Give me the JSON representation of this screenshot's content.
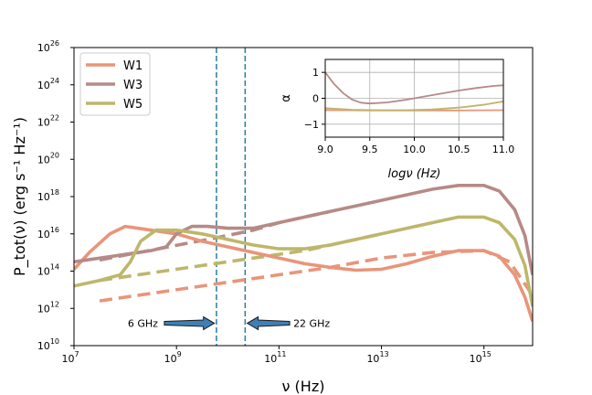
{
  "chart_data": [
    {
      "type": "line",
      "xlabel": "ν (Hz)",
      "ylabel": "P_tot(ν) (erg s⁻¹ Hz⁻¹)",
      "x_scale": "log",
      "y_scale": "log",
      "xlim_log10": [
        7,
        15.95
      ],
      "ylim_log10": [
        10,
        26
      ],
      "xticks_log10": [
        7,
        9,
        11,
        13,
        15
      ],
      "yticks_log10": [
        10,
        12,
        14,
        16,
        18,
        20,
        22,
        24,
        26
      ],
      "tick_base": "10",
      "legend": {
        "placement": "top-left",
        "entries": [
          "W1",
          "W3",
          "W5"
        ]
      },
      "series": [
        {
          "name": "W1",
          "color": "#e8957a",
          "style": "solid",
          "log_x": [
            7,
            7.3,
            7.7,
            8.0,
            8.5,
            9.0,
            9.5,
            10.0,
            10.5,
            11.0,
            11.5,
            12.0,
            12.5,
            13.0,
            13.5,
            14.0,
            14.5,
            15.0,
            15.3,
            15.6,
            15.8,
            15.95
          ],
          "log_y": [
            14.1,
            15.0,
            16.0,
            16.4,
            16.2,
            16.0,
            15.6,
            15.3,
            15.0,
            14.7,
            14.4,
            14.2,
            14.05,
            14.1,
            14.4,
            14.8,
            15.1,
            15.1,
            14.8,
            13.8,
            12.6,
            11.3
          ]
        },
        {
          "name": "W3",
          "color": "#b68a87",
          "style": "solid",
          "log_x": [
            7,
            8.0,
            8.5,
            8.8,
            9.0,
            9.3,
            9.6,
            10.0,
            10.5,
            11.0,
            11.5,
            12.0,
            12.5,
            13.0,
            13.5,
            14.0,
            14.5,
            15.0,
            15.3,
            15.6,
            15.8,
            15.95
          ],
          "log_y": [
            14.5,
            14.9,
            15.1,
            15.3,
            16.0,
            16.4,
            16.4,
            16.3,
            16.3,
            16.6,
            16.9,
            17.2,
            17.5,
            17.8,
            18.1,
            18.4,
            18.6,
            18.6,
            18.3,
            17.3,
            15.9,
            13.8
          ]
        },
        {
          "name": "W5",
          "color": "#bdb76b",
          "style": "solid",
          "log_x": [
            7,
            7.5,
            7.9,
            8.1,
            8.3,
            8.6,
            9.0,
            9.5,
            10.0,
            10.5,
            11.0,
            11.5,
            12.0,
            12.5,
            13.0,
            13.5,
            14.0,
            14.5,
            15.0,
            15.3,
            15.6,
            15.8,
            15.95
          ],
          "log_y": [
            13.2,
            13.5,
            13.8,
            14.5,
            15.6,
            16.2,
            16.2,
            16.0,
            15.7,
            15.4,
            15.2,
            15.2,
            15.4,
            15.7,
            16.0,
            16.3,
            16.6,
            16.9,
            16.9,
            16.6,
            15.7,
            14.3,
            12.1
          ]
        },
        {
          "name": "",
          "color": "#e8957a",
          "style": "dashed",
          "log_x": [
            7.5,
            12.0,
            13.0,
            14.0,
            15.0,
            15.5,
            15.9
          ],
          "log_y": [
            12.4,
            14.2,
            14.7,
            15.0,
            15.1,
            14.5,
            12.9
          ]
        },
        {
          "name": "",
          "color": "#b68a87",
          "style": "dashed",
          "log_x": [
            7.5,
            9.8,
            10.5,
            11.0,
            12.0
          ],
          "log_y": [
            14.6,
            15.8,
            16.2,
            16.6,
            17.2
          ]
        },
        {
          "name": "",
          "color": "#bdb76b",
          "style": "dashed",
          "log_x": [
            7.5,
            11.5,
            12.0,
            13.0
          ],
          "log_y": [
            13.5,
            15.1,
            15.4,
            16.0
          ]
        }
      ],
      "vlines_log10": [
        9.78,
        10.34
      ],
      "annotations": [
        {
          "text": "6 GHz",
          "log_x": 8.05,
          "log_y": 11.2,
          "arrow_to_log_x": 9.74
        },
        {
          "text": "22 GHz",
          "log_x": 11.28,
          "log_y": 11.2,
          "arrow_to_log_x": 10.38
        }
      ]
    },
    {
      "type": "line",
      "inset": true,
      "xlabel": "logν (Hz)",
      "ylabel": "α",
      "xlim": [
        9.0,
        11.0
      ],
      "ylim": [
        -1.5,
        1.5
      ],
      "xticks": [
        "9.0",
        "9.5",
        "10.0",
        "10.5",
        "11.0"
      ],
      "yticks": [
        "1",
        "0",
        "−1"
      ],
      "ytick_values": [
        1,
        0,
        -1
      ],
      "xtick_values": [
        9.0,
        9.5,
        10.0,
        10.5,
        11.0
      ],
      "grid": true,
      "series": [
        {
          "name": "W1",
          "color": "#e8957a",
          "x": [
            9.0,
            9.5,
            10.0,
            10.5,
            11.0
          ],
          "y": [
            -0.46,
            -0.47,
            -0.47,
            -0.47,
            -0.46
          ]
        },
        {
          "name": "W3",
          "color": "#b68a87",
          "x": [
            9.0,
            9.1,
            9.2,
            9.3,
            9.4,
            9.5,
            9.7,
            9.9,
            10.1,
            10.3,
            10.5,
            10.7,
            10.9,
            11.0
          ],
          "y": [
            1.0,
            0.55,
            0.2,
            -0.05,
            -0.17,
            -0.2,
            -0.16,
            -0.06,
            0.06,
            0.18,
            0.3,
            0.4,
            0.48,
            0.5
          ]
        },
        {
          "name": "W5",
          "color": "#bdb76b",
          "x": [
            9.0,
            9.3,
            9.6,
            9.9,
            10.2,
            10.5,
            10.8,
            11.0
          ],
          "y": [
            -0.38,
            -0.44,
            -0.46,
            -0.46,
            -0.43,
            -0.36,
            -0.24,
            -0.12
          ]
        }
      ]
    }
  ]
}
